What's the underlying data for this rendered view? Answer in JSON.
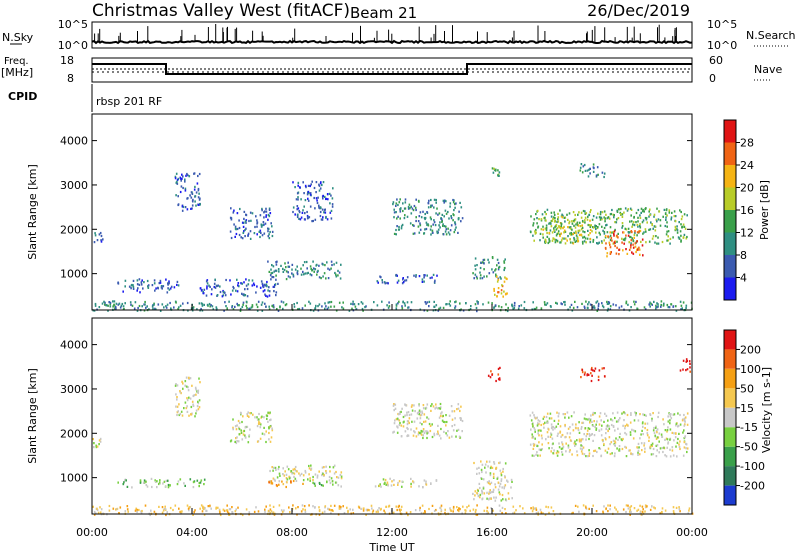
{
  "header": {
    "station": "Christmas Valley West (fitACF)",
    "beam": "Beam 21",
    "date": "26/Dec/2019"
  },
  "left_labels": {
    "nsky": "N.Sky",
    "freq": "Freq.",
    "freq_unit": "[MHz]",
    "cpid": "CPID"
  },
  "right_labels": {
    "nsearch": "N.Search",
    "nave": "Nave"
  },
  "ticks": {
    "nsky_left": [
      "10^5",
      "10^0"
    ],
    "nsky_right": [
      "10^5",
      "10^0"
    ],
    "freq_left": [
      "18",
      "8"
    ],
    "nave_right": [
      "60",
      "0"
    ]
  },
  "cpid_text": "rbsp 201 RF",
  "colors": {
    "frame": "#000000",
    "background": "#ffffff"
  },
  "chart_data": [
    {
      "type": "heatmap",
      "name": "power",
      "xlabel": "Time UT",
      "ylabel": "Slant Range [km]",
      "x_ticks": [
        "00:00",
        "04:00",
        "08:00",
        "12:00",
        "16:00",
        "20:00",
        "00:00"
      ],
      "y_ticks": [
        1000,
        2000,
        3000,
        4000
      ],
      "ylim": [
        180,
        4600
      ],
      "xlim_hours": [
        0,
        24
      ],
      "colorbar": {
        "label": "Power [dB]",
        "ticks": [
          4,
          8,
          12,
          16,
          20,
          24,
          28
        ],
        "range": [
          0,
          32
        ],
        "colors": [
          "#1c1cf0",
          "#3b5bb0",
          "#2f8f82",
          "#3aa04a",
          "#b8cc28",
          "#f5b414",
          "#f06414",
          "#e01414"
        ]
      },
      "regions": [
        {
          "t0": 0.0,
          "t1": 0.4,
          "r0": 1700,
          "r1": 2000,
          "level": 1
        },
        {
          "t0": 1.0,
          "t1": 3.5,
          "r0": 600,
          "r1": 900,
          "level": 1
        },
        {
          "t0": 3.3,
          "t1": 4.3,
          "r0": 2400,
          "r1": 3300,
          "level": 1
        },
        {
          "t0": 5.5,
          "t1": 7.2,
          "r0": 1800,
          "r1": 2500,
          "level": 1
        },
        {
          "t0": 7.0,
          "t1": 10.0,
          "r0": 900,
          "r1": 1300,
          "level": 2
        },
        {
          "t0": 4.3,
          "t1": 7.5,
          "r0": 500,
          "r1": 900,
          "level": 1
        },
        {
          "t0": 8.0,
          "t1": 9.6,
          "r0": 2200,
          "r1": 3100,
          "level": 1
        },
        {
          "t0": 12.0,
          "t1": 14.8,
          "r0": 1900,
          "r1": 2700,
          "level": 2
        },
        {
          "t0": 11.3,
          "t1": 13.8,
          "r0": 800,
          "r1": 1000,
          "level": 1
        },
        {
          "t0": 15.2,
          "t1": 16.5,
          "r0": 900,
          "r1": 1400,
          "level": 2
        },
        {
          "t0": 16.0,
          "t1": 16.6,
          "r0": 500,
          "r1": 1000,
          "level": 5
        },
        {
          "t0": 15.8,
          "t1": 16.3,
          "r0": 3200,
          "r1": 3500,
          "level": 3
        },
        {
          "t0": 17.5,
          "t1": 23.8,
          "r0": 1700,
          "r1": 2500,
          "level": 3
        },
        {
          "t0": 18.0,
          "t1": 20.0,
          "r0": 1700,
          "r1": 2300,
          "level": 4
        },
        {
          "t0": 20.5,
          "t1": 22.0,
          "r0": 1400,
          "r1": 2000,
          "level": 6
        },
        {
          "t0": 19.5,
          "t1": 20.5,
          "r0": 3200,
          "r1": 3500,
          "level": 2
        },
        {
          "t0": 0.0,
          "t1": 24.0,
          "r0": 180,
          "r1": 400,
          "level": 2
        }
      ]
    },
    {
      "type": "heatmap",
      "name": "velocity",
      "xlabel": "Time UT",
      "ylabel": "Slant Range [km]",
      "x_ticks": [
        "00:00",
        "04:00",
        "08:00",
        "12:00",
        "16:00",
        "20:00",
        "00:00"
      ],
      "y_ticks": [
        1000,
        2000,
        3000,
        4000
      ],
      "ylim": [
        180,
        4600
      ],
      "xlim_hours": [
        0,
        24
      ],
      "colorbar": {
        "label": "Velocity [m s-1]",
        "ticks": [
          "200",
          "100",
          "50",
          "15",
          "-15",
          "-50",
          "-100",
          "-200"
        ],
        "colors": [
          "#1c3cd0",
          "#2f7a5a",
          "#3aa04a",
          "#78d040",
          "#c8c8c8",
          "#f5c850",
          "#f5a014",
          "#f06414",
          "#e01414"
        ]
      },
      "regions": [
        {
          "t0": 0.0,
          "t1": 0.4,
          "r0": 1700,
          "r1": 2000,
          "level": 4
        },
        {
          "t0": 1.0,
          "t1": 4.5,
          "r0": 800,
          "r1": 1000,
          "level": 3
        },
        {
          "t0": 3.3,
          "t1": 4.3,
          "r0": 2400,
          "r1": 3300,
          "level": 4
        },
        {
          "t0": 5.5,
          "t1": 7.2,
          "r0": 1800,
          "r1": 2500,
          "level": 4
        },
        {
          "t0": 7.0,
          "t1": 10.0,
          "r0": 900,
          "r1": 1300,
          "level": 4
        },
        {
          "t0": 7.0,
          "t1": 8.5,
          "r0": 800,
          "r1": 950,
          "level": 6
        },
        {
          "t0": 8.8,
          "t1": 10.0,
          "r0": 800,
          "r1": 950,
          "level": 3
        },
        {
          "t0": 12.0,
          "t1": 14.8,
          "r0": 1900,
          "r1": 2700,
          "level": 4
        },
        {
          "t0": 11.3,
          "t1": 13.8,
          "r0": 800,
          "r1": 1000,
          "level": 4
        },
        {
          "t0": 15.2,
          "t1": 16.8,
          "r0": 500,
          "r1": 1400,
          "level": 4
        },
        {
          "t0": 15.8,
          "t1": 16.3,
          "r0": 3200,
          "r1": 3500,
          "level": 8
        },
        {
          "t0": 17.5,
          "t1": 23.8,
          "r0": 1500,
          "r1": 2500,
          "level": 4
        },
        {
          "t0": 19.5,
          "t1": 20.5,
          "r0": 3200,
          "r1": 3500,
          "level": 8
        },
        {
          "t0": 23.5,
          "t1": 24.0,
          "r0": 3400,
          "r1": 3700,
          "level": 8
        },
        {
          "t0": 0.0,
          "t1": 24.0,
          "r0": 180,
          "r1": 400,
          "level": 5
        }
      ]
    }
  ]
}
